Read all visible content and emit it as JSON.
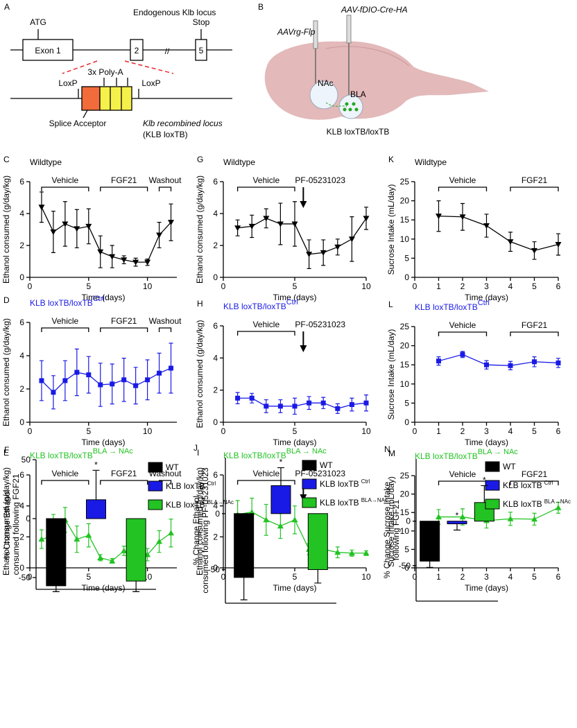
{
  "panels": {
    "a": {
      "label": "A",
      "locus_title": "Endogenous Klb locus",
      "atg": "ATG",
      "exon1": "Exon 1",
      "exon2": "2",
      "stop": "Stop",
      "exon5": "5",
      "loxp_left": "LoxP",
      "polya": "3x Poly-A",
      "loxp_right": "LoxP",
      "splice": "Splice Acceptor",
      "recombined": "Klb recombined locus",
      "recombined_name": "(KLB loxTB)"
    },
    "b": {
      "label": "B",
      "virus1": "AAVrg-Flp",
      "virus2": "AAV-fDIO-Cre-HA",
      "region1": "NAc",
      "region2": "BLA",
      "mouse": "KLB loxTB/loxTB"
    }
  },
  "chart_data": [
    {
      "type": "line",
      "label": "C",
      "title": "Wildtype",
      "color": "#000000",
      "marker": "triangle-down",
      "x": [
        1,
        2,
        3,
        4,
        5,
        6,
        7,
        8,
        9,
        10,
        11,
        12
      ],
      "values": [
        4.4,
        2.85,
        3.35,
        3.05,
        3.2,
        1.6,
        1.3,
        1.1,
        0.95,
        0.95,
        2.65,
        3.45
      ],
      "errors": [
        0.95,
        1.3,
        1.4,
        1.2,
        1.1,
        1.0,
        0.7,
        0.25,
        0.25,
        0.2,
        0.8,
        1.15
      ],
      "xlim": [
        0,
        12.5
      ],
      "xticks": [
        0,
        5,
        10
      ],
      "ylim": [
        0,
        6
      ],
      "yticks": [
        0,
        2,
        4,
        6
      ],
      "xlabel": "Time (days)",
      "ylabel": "Ethanol consumed (g/day/kg)",
      "phases": [
        {
          "text": "Vehicle",
          "span": [
            1,
            5
          ],
          "color": "#000000"
        },
        {
          "text": "FGF21",
          "span": [
            6,
            10
          ],
          "color": "#e8262b"
        },
        {
          "text": "Washout",
          "span": [
            11,
            12
          ],
          "color": "#000000"
        }
      ]
    },
    {
      "type": "line",
      "label": "D",
      "title": "KLB loxTB/loxTB",
      "title_sup": "Ctrl",
      "color": "#1a1ae6",
      "marker": "square",
      "x": [
        1,
        2,
        3,
        4,
        5,
        6,
        7,
        8,
        9,
        10,
        11,
        12
      ],
      "values": [
        2.5,
        1.8,
        2.5,
        3.0,
        2.85,
        2.25,
        2.3,
        2.55,
        2.2,
        2.55,
        2.95,
        3.25
      ],
      "errors": [
        1.2,
        1.0,
        1.2,
        1.4,
        1.1,
        1.3,
        1.2,
        1.3,
        1.1,
        1.2,
        1.2,
        1.5
      ],
      "xlim": [
        0,
        12.5
      ],
      "xticks": [
        0,
        5,
        10
      ],
      "ylim": [
        0,
        6
      ],
      "yticks": [
        0,
        2,
        4,
        6
      ],
      "xlabel": "Time (days)",
      "ylabel": "Ethanol consumed (g/day/kg)",
      "phases": [
        {
          "text": "Vehicle",
          "span": [
            1,
            5
          ],
          "color": "#000000"
        },
        {
          "text": "FGF21",
          "span": [
            6,
            10
          ],
          "color": "#e8262b"
        },
        {
          "text": "Washout",
          "span": [
            11,
            12
          ],
          "color": "#000000"
        }
      ]
    },
    {
      "type": "line",
      "label": "E",
      "title": "KLB loxTB/loxTB",
      "title_sup": "BLA → NAc",
      "color": "#22c322",
      "marker": "triangle-up",
      "x": [
        1,
        2,
        3,
        4,
        5,
        6,
        7,
        8,
        9,
        10,
        11,
        12
      ],
      "values": [
        1.85,
        2.05,
        3.1,
        1.85,
        2.1,
        0.65,
        0.45,
        1.1,
        0.5,
        0.85,
        1.7,
        2.25
      ],
      "errors": [
        0.6,
        1.4,
        0.8,
        0.85,
        0.75,
        0.2,
        0.15,
        0.3,
        0.15,
        0.4,
        0.7,
        0.9
      ],
      "xlim": [
        0,
        12.5
      ],
      "xticks": [
        0,
        5,
        10
      ],
      "ylim": [
        0,
        6
      ],
      "yticks": [
        0,
        2,
        4,
        6
      ],
      "xlabel": "Time (days)",
      "ylabel": "Ethanol consumed (g/day/kg)",
      "phases": [
        {
          "text": "Vehicle",
          "span": [
            1,
            5
          ],
          "color": "#000000"
        },
        {
          "text": "FGF21",
          "span": [
            6,
            10
          ],
          "color": "#e8262b"
        },
        {
          "text": "Washout",
          "span": [
            11,
            12
          ],
          "color": "#000000"
        }
      ]
    },
    {
      "type": "bar",
      "label": "F",
      "categories": [
        "WT",
        "KLB loxTB",
        "KLB loxTB"
      ],
      "category_sups": [
        null,
        "Ctrl",
        "BLA→NAc"
      ],
      "colors": [
        "#000000",
        "#1a1ae6",
        "#22c322"
      ],
      "values": [
        -57,
        16,
        -53
      ],
      "errors": [
        5,
        25,
        9
      ],
      "significance": [
        null,
        "*",
        null
      ],
      "ylim": [
        -60,
        50
      ],
      "yticks": [
        -50,
        0,
        50
      ],
      "ylabel": [
        "% Change Ethanol",
        "consumed following FGF21"
      ]
    },
    {
      "type": "line",
      "label": "G",
      "title": "Wildtype",
      "color": "#000000",
      "marker": "triangle-down",
      "x": [
        1,
        2,
        3,
        4,
        5,
        6,
        7,
        8,
        9,
        10
      ],
      "values": [
        3.1,
        3.2,
        3.7,
        3.35,
        3.35,
        1.45,
        1.55,
        1.9,
        2.4,
        3.7
      ],
      "errors": [
        0.5,
        0.7,
        0.6,
        1.3,
        1.4,
        0.9,
        0.8,
        0.5,
        1.4,
        0.7
      ],
      "xlim": [
        0,
        10
      ],
      "xticks": [
        0,
        5,
        10
      ],
      "ylim": [
        0,
        6
      ],
      "yticks": [
        0,
        2,
        4,
        6
      ],
      "xlabel": "Time (days)",
      "ylabel": "Ethanol consumed (g/day/kg)",
      "phases": [
        {
          "text": "Vehicle",
          "span": [
            1,
            5
          ],
          "color": "#000000"
        }
      ],
      "arrow": {
        "text": "PF-05231023",
        "x": 5.6
      }
    },
    {
      "type": "line",
      "label": "H",
      "title": "KLB loxTB/loxTB",
      "title_sup": "Ctrl",
      "color": "#1a1ae6",
      "marker": "square",
      "x": [
        1,
        2,
        3,
        4,
        5,
        6,
        7,
        8,
        9,
        10
      ],
      "values": [
        1.5,
        1.5,
        1.0,
        1.0,
        1.0,
        1.2,
        1.2,
        0.85,
        1.1,
        1.2
      ],
      "errors": [
        0.35,
        0.3,
        0.4,
        0.4,
        0.5,
        0.4,
        0.35,
        0.3,
        0.4,
        0.5
      ],
      "xlim": [
        0,
        10
      ],
      "xticks": [
        0,
        5,
        10
      ],
      "ylim": [
        0,
        6
      ],
      "yticks": [
        0,
        2,
        4,
        6
      ],
      "xlabel": "Time (days)",
      "ylabel": "Ethanol consumed (g/day/kg)",
      "phases": [
        {
          "text": "Vehicle",
          "span": [
            1,
            5
          ],
          "color": "#000000"
        }
      ],
      "arrow": {
        "text": "PF-05231023",
        "x": 5.6
      }
    },
    {
      "type": "line",
      "label": "I",
      "title": "KLB loxTB/loxTB",
      "title_sup": "BLA → NAc",
      "color": "#22c322",
      "marker": "triangle-up",
      "x": [
        1,
        2,
        3,
        4,
        5,
        6,
        7,
        8,
        9,
        10
      ],
      "values": [
        3.45,
        3.6,
        3.1,
        2.7,
        3.1,
        1.2,
        1.2,
        1.0,
        0.95,
        0.95
      ],
      "errors": [
        0.9,
        0.9,
        1.0,
        0.8,
        0.9,
        0.35,
        0.35,
        0.35,
        0.2,
        0.15
      ],
      "xlim": [
        0,
        10
      ],
      "xticks": [
        0,
        5,
        10
      ],
      "ylim": [
        0,
        6
      ],
      "yticks": [
        0,
        2,
        4,
        6
      ],
      "xlabel": "Time (days)",
      "ylabel": "Ethanol consumed (g/day/kg)",
      "phases": [
        {
          "text": "Vehicle",
          "span": [
            1,
            5
          ],
          "color": "#000000"
        }
      ],
      "arrow": {
        "text": "PF-05231023",
        "x": 5.6
      }
    },
    {
      "type": "bar",
      "label": "J",
      "categories": [
        "WT",
        "KLB loxTB",
        "KLB loxTB"
      ],
      "category_sups": [
        null,
        "Ctrl",
        "BLA→NAc"
      ],
      "colors": [
        "#000000",
        "#1a1ae6",
        "#22c322"
      ],
      "values": [
        -57,
        25,
        -50
      ],
      "errors": [
        20,
        16,
        12
      ],
      "significance": [
        null,
        "*",
        null
      ],
      "ylim": [
        -80,
        50
      ],
      "yticks": [
        -50,
        0
      ],
      "ylabel": [
        "% Change Ethanol",
        "consumed following PF-05231023"
      ]
    },
    {
      "type": "line",
      "label": "K",
      "title": "Wildtype",
      "color": "#000000",
      "marker": "triangle-down",
      "x": [
        1,
        2,
        3,
        4,
        5,
        6
      ],
      "values": [
        16,
        15.8,
        13.5,
        9.3,
        7,
        8.6
      ],
      "errors": [
        4,
        3.5,
        3,
        2.5,
        2.3,
        2.8
      ],
      "xlim": [
        0,
        6
      ],
      "xticks": [
        0,
        1,
        2,
        3,
        4,
        5,
        6
      ],
      "ylim": [
        0,
        25
      ],
      "yticks": [
        0,
        5,
        10,
        15,
        20,
        25
      ],
      "xlabel": "Time (days)",
      "ylabel": "Sucrose Intake (mL/day)",
      "phases": [
        {
          "text": "Vehicle",
          "span": [
            1,
            3
          ],
          "color": "#000000"
        },
        {
          "text": "FGF21",
          "span": [
            4,
            6
          ],
          "color": "#e8262b"
        }
      ]
    },
    {
      "type": "line",
      "label": "L",
      "title": "KLB loxTB/loxTB",
      "title_sup": "Ctrl",
      "color": "#1a1ae6",
      "marker": "square",
      "x": [
        1,
        2,
        3,
        4,
        5,
        6
      ],
      "values": [
        16,
        17.7,
        15,
        14.8,
        15.8,
        15.5
      ],
      "errors": [
        1.1,
        0.8,
        1.1,
        1.1,
        1.3,
        1.2
      ],
      "xlim": [
        0,
        6
      ],
      "xticks": [
        0,
        1,
        2,
        3,
        4,
        5,
        6
      ],
      "ylim": [
        0,
        25
      ],
      "yticks": [
        0,
        5,
        10,
        15,
        20,
        25
      ],
      "xlabel": "Time (days)",
      "ylabel": "Sucrose Intake (mL/day)",
      "phases": [
        {
          "text": "Vehicle",
          "span": [
            1,
            3
          ],
          "color": "#000000"
        },
        {
          "text": "FGF21",
          "span": [
            4,
            6
          ],
          "color": "#e8262b"
        }
      ]
    },
    {
      "type": "line",
      "label": "M",
      "title": "KLB loxTB/loxTB",
      "title_sup": "BLA → NAc",
      "color": "#22c322",
      "marker": "triangle-up",
      "x": [
        1,
        2,
        3,
        4,
        5,
        6
      ],
      "values": [
        13.8,
        13.8,
        12.8,
        13.3,
        13.2,
        16.3
      ],
      "errors": [
        2,
        2.2,
        2,
        1.8,
        1.6,
        1.5
      ],
      "xlim": [
        0,
        6
      ],
      "xticks": [
        0,
        1,
        2,
        3,
        4,
        5,
        6
      ],
      "ylim": [
        0,
        25
      ],
      "yticks": [
        0,
        5,
        10,
        15,
        20,
        25
      ],
      "xlabel": "Time (days)",
      "ylabel": "Sucrose Intake (mL/day)",
      "phases": [
        {
          "text": "Vehicle",
          "span": [
            1,
            3
          ],
          "color": "#000000"
        },
        {
          "text": "FGF21",
          "span": [
            4,
            6
          ],
          "color": "#000000"
        }
      ]
    },
    {
      "type": "bar",
      "label": "N",
      "categories": [
        "WT",
        "KLB loxTB",
        "KLB loxTB"
      ],
      "category_sups": [
        null,
        "Ctrl",
        "BLA→NAc"
      ],
      "colors": [
        "#000000",
        "#1a1ae6",
        "#22c322"
      ],
      "values": [
        -45,
        -3,
        21
      ],
      "errors": [
        7,
        7,
        19
      ],
      "significance": [
        null,
        "*",
        "*"
      ],
      "ylim": [
        -90,
        70
      ],
      "yticks": [
        -50,
        0
      ],
      "ylabel": [
        "% Change Sucrose Intake",
        "following FGF21"
      ]
    }
  ]
}
